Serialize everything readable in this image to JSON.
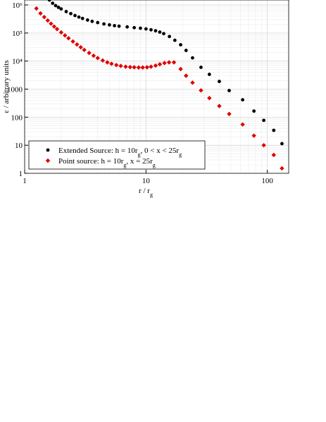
{
  "chart_data": {
    "type": "scatter",
    "xlabel": "r / rg",
    "ylabel": "ε / arbitrary units",
    "xlog": true,
    "ylog": true,
    "grid": true,
    "legend": "lower left",
    "xlim": [
      1,
      150
    ],
    "ylim": [
      1,
      1500000
    ],
    "xticks": [
      1,
      10,
      100
    ],
    "yticks": [
      1,
      10,
      100,
      1000,
      {
        "value": 10000,
        "label": "10⁴"
      },
      {
        "value": 100000,
        "label": "10⁵"
      },
      {
        "value": 1000000,
        "label": "10⁶"
      }
    ],
    "series": [
      {
        "name": "Extended Source: h = 10rg, 0 < x < 25rg",
        "color": "#000000",
        "marker": "circle",
        "x": [
          1.6,
          1.7,
          1.8,
          1.9,
          2.0,
          2.2,
          2.4,
          2.6,
          2.8,
          3.0,
          3.3,
          3.6,
          4.0,
          4.5,
          5.0,
          5.5,
          6.0,
          7.0,
          8.0,
          9.0,
          10,
          11,
          12,
          13,
          14.0,
          15.6,
          17.3,
          19.3,
          21.4,
          24.2,
          28.4,
          33.3,
          40.2,
          48.5,
          62.6,
          77.6,
          93.5,
          113,
          132
        ],
        "values": [
          1500000,
          1150000,
          950000,
          820000,
          720000,
          580000,
          490000,
          420000,
          370000,
          330000,
          290000,
          260000,
          235000,
          210000,
          195000,
          183000,
          175000,
          165000,
          155000,
          148000,
          140000,
          130000,
          120000,
          108000,
          95000,
          75000,
          55000,
          38000,
          24000,
          13000,
          6000,
          3360,
          1880,
          890,
          417,
          165,
          77,
          34,
          11.4
        ]
      },
      {
        "name": "Point source: h = 10rg, x = 25rg",
        "color": "#e00000",
        "marker": "diamond",
        "x": [
          1.25,
          1.35,
          1.45,
          1.55,
          1.65,
          1.75,
          1.85,
          2.0,
          2.15,
          2.3,
          2.5,
          2.7,
          2.9,
          3.1,
          3.4,
          3.7,
          4.0,
          4.4,
          4.8,
          5.2,
          5.7,
          6.2,
          6.8,
          7.4,
          8.0,
          8.7,
          9.4,
          10.2,
          11,
          12,
          13,
          14.2,
          15.5,
          17,
          19.3,
          21.4,
          24.2,
          28.4,
          33.3,
          40.2,
          48.5,
          62.6,
          77.6,
          93.5,
          113,
          132
        ],
        "values": [
          750000,
          500000,
          370000,
          280000,
          215000,
          170000,
          138000,
          105000,
          82000,
          65000,
          50000,
          39000,
          31000,
          25000,
          19500,
          15500,
          12800,
          10500,
          9000,
          8000,
          7200,
          6700,
          6300,
          6100,
          6000,
          5900,
          5900,
          6000,
          6300,
          6900,
          7700,
          8500,
          9000,
          9000,
          5200,
          3000,
          1700,
          900,
          480,
          250,
          130,
          55,
          22,
          10,
          4.5,
          1.5
        ]
      }
    ]
  }
}
